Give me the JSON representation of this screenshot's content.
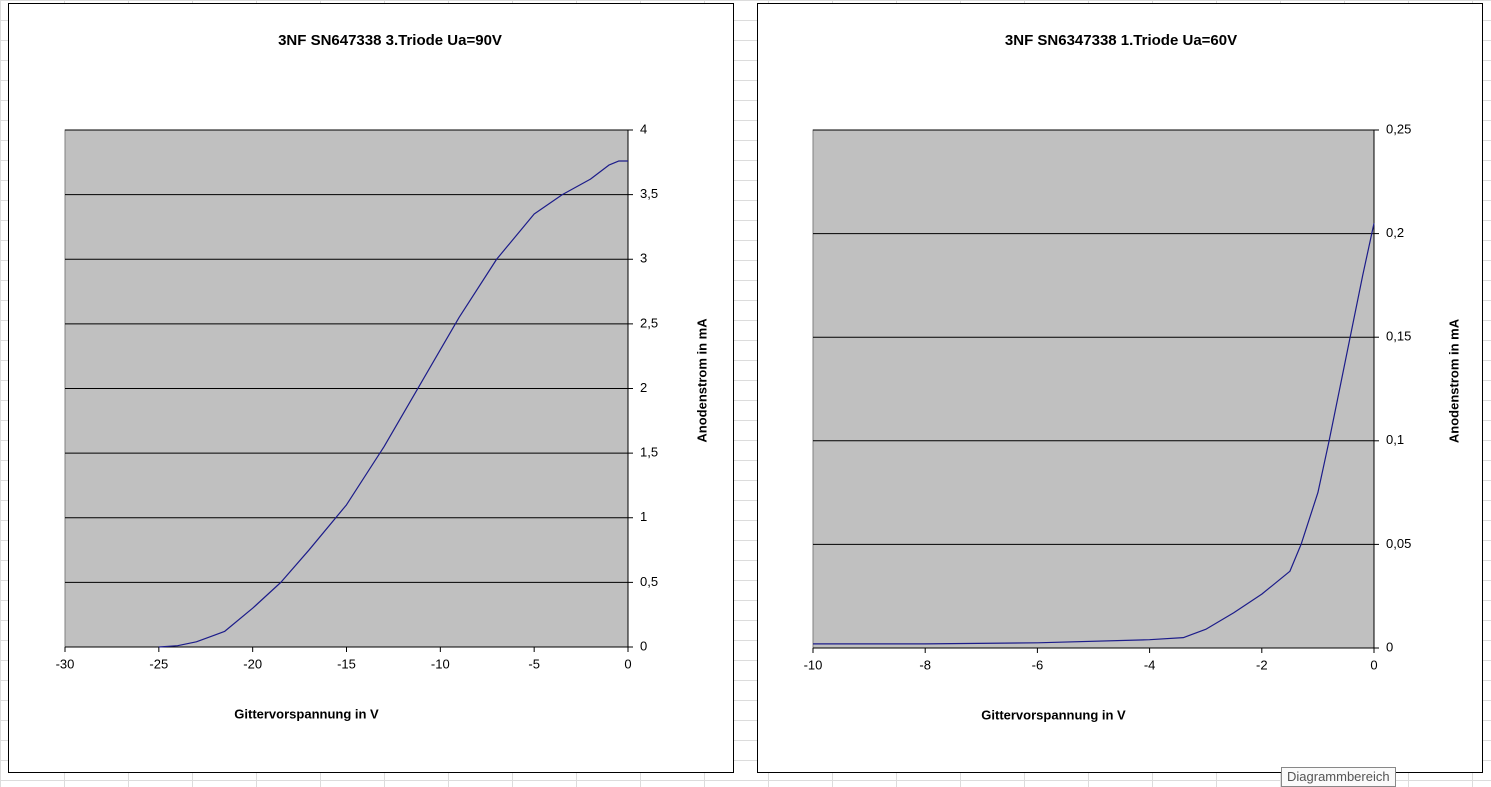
{
  "chart_data": [
    {
      "type": "line",
      "title": "3NF SN647338 3.Triode Ua=90V",
      "x_label": "Gittervorspannung  in V",
      "y_label": "Anodenstrom  in mA",
      "x": [
        -25,
        -24,
        -23,
        -21.5,
        -20,
        -18.5,
        -17,
        -15,
        -13,
        -11,
        -9,
        -7,
        -5,
        -3.5,
        -2,
        -1,
        -0.5,
        0
      ],
      "series": [
        {
          "color": "#1c1c8a",
          "values": [
            0,
            0.01,
            0.04,
            0.12,
            0.3,
            0.5,
            0.75,
            1.1,
            1.55,
            2.05,
            2.55,
            3.0,
            3.35,
            3.5,
            3.62,
            3.73,
            3.76,
            3.76
          ]
        }
      ],
      "xlim": [
        -30,
        0
      ],
      "xticks": [
        -30,
        -25,
        -20,
        -15,
        -10,
        -5,
        0
      ],
      "ylim": [
        0,
        4
      ],
      "yticks": [
        0,
        {
          "value": 0.5,
          "label": "0,5"
        },
        1,
        {
          "value": 1.5,
          "label": "1,5"
        },
        2,
        {
          "value": 2.5,
          "label": "2,5"
        },
        3,
        {
          "value": 3.5,
          "label": "3,5"
        },
        4
      ],
      "grid": true,
      "plot_background": "#c0c0c0"
    },
    {
      "type": "line",
      "title": "3NF SN6347338 1.Triode Ua=60V",
      "x_label": "Gittervorspannung  in V",
      "y_label": "Anodenstrom  in mA",
      "x": [
        -10,
        -8,
        -6,
        -4,
        -3.4,
        -3,
        -2.5,
        -2,
        -1.5,
        -1.3,
        -1,
        -0.8,
        -0.5,
        -0.2,
        0
      ],
      "series": [
        {
          "color": "#1c1c8a",
          "values": [
            0.002,
            0.002,
            0.0025,
            0.004,
            0.005,
            0.009,
            0.017,
            0.026,
            0.037,
            0.05,
            0.075,
            0.1,
            0.14,
            0.18,
            0.205
          ]
        }
      ],
      "xlim": [
        -10,
        0
      ],
      "xticks": [
        -10,
        -8,
        -6,
        -4,
        -2,
        0
      ],
      "ylim": [
        0,
        0.25
      ],
      "yticks": [
        0,
        {
          "value": 0.05,
          "label": "0,05"
        },
        {
          "value": 0.1,
          "label": "0,1"
        },
        {
          "value": 0.15,
          "label": "0,15"
        },
        {
          "value": 0.2,
          "label": "0,2"
        },
        {
          "value": 0.25,
          "label": "0,25"
        }
      ],
      "grid": true,
      "plot_background": "#c0c0c0"
    }
  ],
  "tooltip": "Diagrammbereich"
}
